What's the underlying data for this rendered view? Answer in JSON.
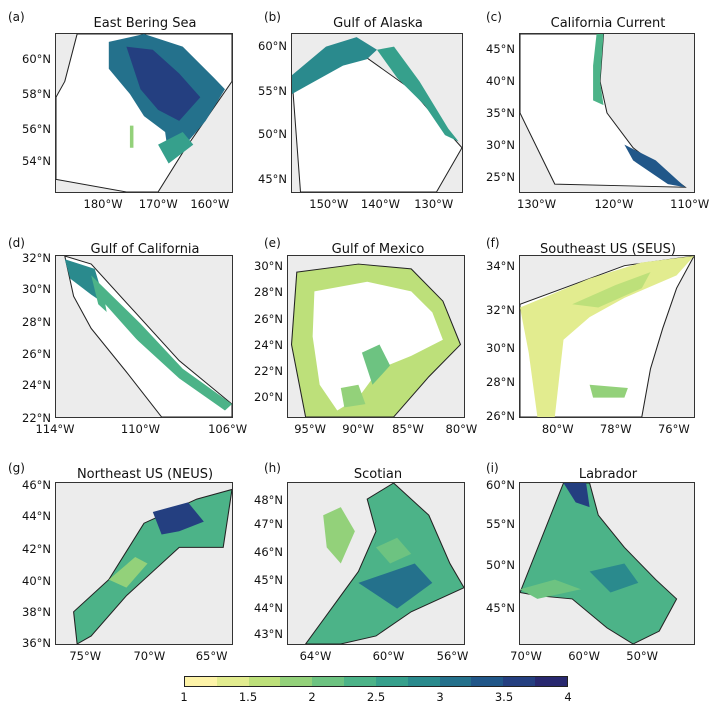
{
  "panels": [
    {
      "label": "(a)",
      "title": "East Bering Sea",
      "yticks": [
        "60°N",
        "58°N",
        "56°N",
        "54°N"
      ],
      "xticks": [
        "180°W",
        "170°W",
        "160°W"
      ]
    },
    {
      "label": "(b)",
      "title": "Gulf of Alaska",
      "yticks": [
        "60°N",
        "55°N",
        "50°N",
        "45°N"
      ],
      "xticks": [
        "150°W",
        "140°W",
        "130°W"
      ]
    },
    {
      "label": "(c)",
      "title": "California Current",
      "yticks": [
        "45°N",
        "40°N",
        "35°N",
        "30°N",
        "25°N"
      ],
      "xticks": [
        "130°W",
        "120°W",
        "110°W"
      ]
    },
    {
      "label": "(d)",
      "title": "Gulf of California",
      "yticks": [
        "32°N",
        "30°N",
        "28°N",
        "26°N",
        "24°N",
        "22°N"
      ],
      "xticks": [
        "114°W",
        "110°W",
        "106°W"
      ]
    },
    {
      "label": "(e)",
      "title": "Gulf of Mexico",
      "yticks": [
        "30°N",
        "28°N",
        "26°N",
        "24°N",
        "22°N",
        "20°N"
      ],
      "xticks": [
        "95°W",
        "90°W",
        "85°W",
        "80°W"
      ]
    },
    {
      "label": "(f)",
      "title": "Southeast US (SEUS)",
      "yticks": [
        "34°N",
        "32°N",
        "30°N",
        "28°N",
        "26°N"
      ],
      "xticks": [
        "80°W",
        "78°W",
        "76°W"
      ]
    },
    {
      "label": "(g)",
      "title": "Northeast US (NEUS)",
      "yticks": [
        "46°N",
        "44°N",
        "42°N",
        "40°N",
        "38°N",
        "36°N"
      ],
      "xticks": [
        "75°W",
        "70°W",
        "65°W"
      ]
    },
    {
      "label": "(h)",
      "title": "Scotian",
      "yticks": [
        "48°N",
        "47°N",
        "46°N",
        "45°N",
        "44°N",
        "43°N"
      ],
      "xticks": [
        "64°W",
        "60°W",
        "56°W"
      ]
    },
    {
      "label": "(i)",
      "title": "Labrador",
      "yticks": [
        "60°N",
        "55°N",
        "50°N",
        "45°N"
      ],
      "xticks": [
        "70°W",
        "60°W",
        "50°W"
      ]
    }
  ],
  "colorbar": {
    "ticks": [
      "1",
      "1.5",
      "2",
      "2.5",
      "3",
      "3.5",
      "4"
    ],
    "colors": [
      "#fdf3a8",
      "#e2ec8f",
      "#bde07a",
      "#93d17a",
      "#6dc381",
      "#4cb388",
      "#36a08c",
      "#2a8a8d",
      "#24718c",
      "#215789",
      "#243f80",
      "#28286f"
    ]
  },
  "colors": {
    "land": "#ececec",
    "ocean": "#ffffff",
    "border": "#222222"
  }
}
